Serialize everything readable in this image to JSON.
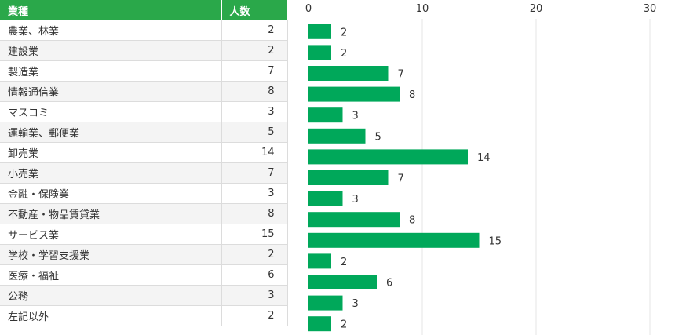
{
  "table": {
    "header": [
      "業種",
      "人数"
    ],
    "header_color": "#2aa84a"
  },
  "bar_color": "#00a85a",
  "chart_data": {
    "type": "bar",
    "orientation": "horizontal",
    "categories": [
      "農業、林業",
      "建設業",
      "製造業",
      "情報通信業",
      "マスコミ",
      "運輸業、郵便業",
      "卸売業",
      "小売業",
      "金融・保険業",
      "不動産・物品賃貸業",
      "サービス業",
      "学校・学習支援業",
      "医療・福祉",
      "公務",
      "左記以外"
    ],
    "values": [
      2,
      2,
      7,
      8,
      3,
      5,
      14,
      7,
      3,
      8,
      15,
      2,
      6,
      3,
      2
    ],
    "xlim": [
      0,
      30
    ],
    "xticks": [
      0,
      10,
      20,
      30
    ],
    "grid": true,
    "data_labels": true
  }
}
